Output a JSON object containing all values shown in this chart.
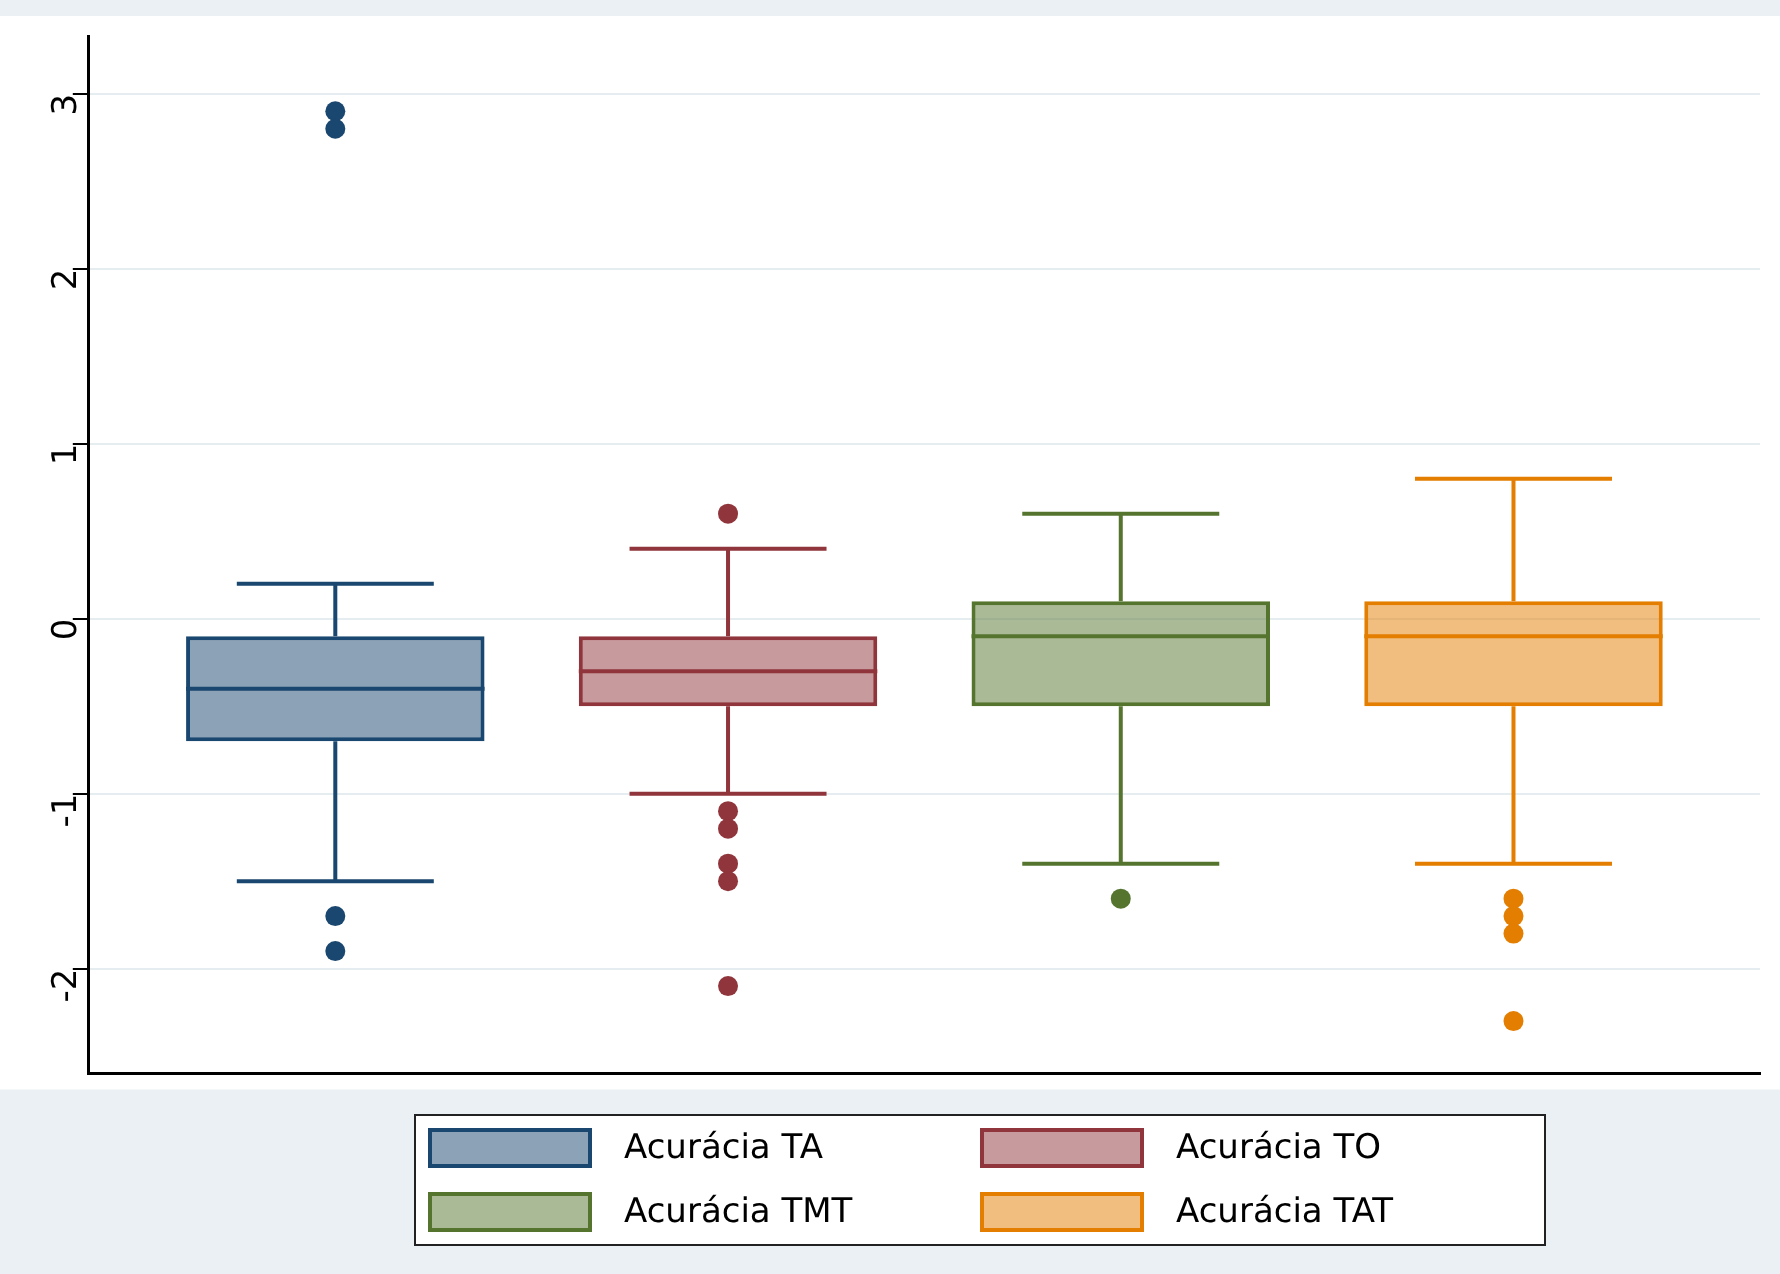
{
  "chart_data": {
    "type": "box",
    "categories": [
      null
    ],
    "series": [
      {
        "name": "Acurácia TA",
        "color": "#1a476f",
        "boxes": [
          {
            "low": -1.5,
            "q1": -0.7,
            "median": -0.4,
            "q3": -0.1,
            "high": 0.2,
            "outliers": [
              2.9,
              2.8,
              -1.7,
              -1.9
            ]
          }
        ]
      },
      {
        "name": "Acurácia TO",
        "color": "#90353b",
        "boxes": [
          {
            "low": -1.0,
            "q1": -0.5,
            "median": -0.3,
            "q3": -0.1,
            "high": 0.4,
            "outliers": [
              0.6,
              -1.1,
              -1.2,
              -1.4,
              -1.5,
              -2.1
            ]
          }
        ]
      },
      {
        "name": "Acurácia TMT",
        "color": "#55752f",
        "boxes": [
          {
            "low": -1.4,
            "q1": -0.5,
            "median": -0.1,
            "q3": 0.1,
            "high": 0.6,
            "outliers": [
              -1.6
            ]
          }
        ]
      },
      {
        "name": "Acurácia TAT",
        "color": "#e37e00",
        "boxes": [
          {
            "low": -1.4,
            "q1": -0.5,
            "median": -0.1,
            "q3": 0.1,
            "high": 0.8,
            "outliers": [
              -1.6,
              -1.7,
              -1.8,
              -2.3
            ]
          }
        ]
      }
    ],
    "ylim": [
      -2.6,
      3.33
    ],
    "yticks": [
      -2,
      -1,
      0,
      1,
      2,
      3
    ],
    "grid": "y",
    "legend": "bottom"
  }
}
